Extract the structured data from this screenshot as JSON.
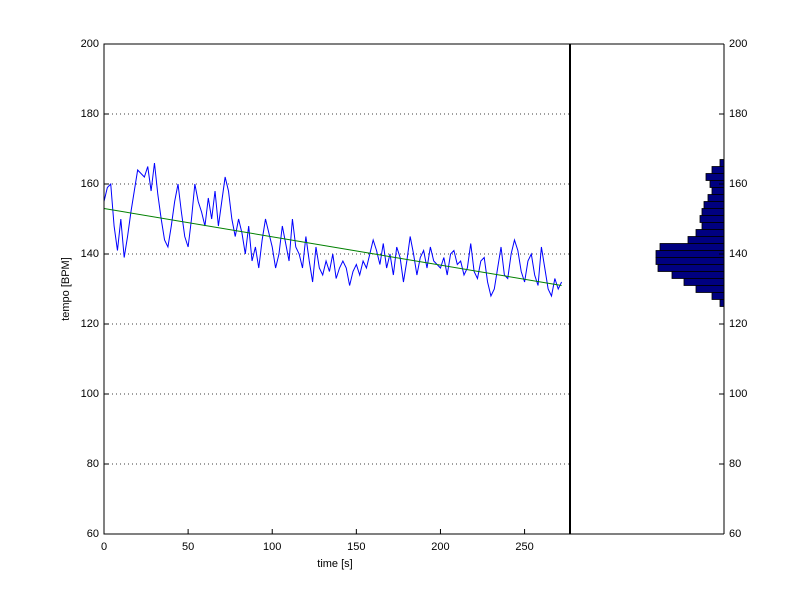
{
  "chart_data": [
    {
      "type": "line",
      "x_label": "time [s]",
      "y_label": "tempo [BPM]",
      "x": [
        0,
        2,
        4,
        6,
        8,
        10,
        12,
        14,
        16,
        18,
        20,
        22,
        24,
        26,
        28,
        30,
        32,
        34,
        36,
        38,
        40,
        42,
        44,
        46,
        48,
        50,
        52,
        54,
        56,
        58,
        60,
        62,
        64,
        66,
        68,
        70,
        72,
        74,
        76,
        78,
        80,
        82,
        84,
        86,
        88,
        90,
        92,
        94,
        96,
        98,
        100,
        102,
        104,
        106,
        108,
        110,
        112,
        114,
        116,
        118,
        120,
        122,
        124,
        126,
        128,
        130,
        132,
        134,
        136,
        138,
        140,
        142,
        144,
        146,
        148,
        150,
        152,
        154,
        156,
        158,
        160,
        162,
        164,
        166,
        168,
        170,
        172,
        174,
        176,
        178,
        180,
        182,
        184,
        186,
        188,
        190,
        192,
        194,
        196,
        198,
        200,
        202,
        204,
        206,
        208,
        210,
        212,
        214,
        216,
        218,
        220,
        222,
        224,
        226,
        228,
        230,
        232,
        234,
        236,
        238,
        240,
        242,
        244,
        246,
        248,
        250,
        252,
        254,
        256,
        258,
        260,
        262,
        264,
        266,
        268,
        270,
        272
      ],
      "series": [
        {
          "color": "#0000ff",
          "values": [
            155,
            159,
            160,
            148,
            141,
            150,
            139,
            145,
            152,
            158,
            164,
            163,
            162,
            165,
            158,
            166,
            157,
            150,
            144,
            142,
            148,
            155,
            160,
            152,
            145,
            142,
            150,
            160,
            155,
            152,
            148,
            156,
            150,
            158,
            148,
            155,
            162,
            158,
            150,
            145,
            150,
            146,
            140,
            148,
            138,
            142,
            136,
            144,
            150,
            146,
            142,
            136,
            140,
            148,
            143,
            138,
            150,
            142,
            140,
            136,
            145,
            138,
            132,
            142,
            136,
            134,
            138,
            135,
            140,
            133,
            136,
            138,
            136,
            131,
            135,
            137,
            134,
            138,
            136,
            140,
            144,
            141,
            137,
            143,
            136,
            140,
            134,
            142,
            139,
            132,
            138,
            145,
            140,
            134,
            139,
            141,
            136,
            142,
            138,
            137,
            136,
            139,
            134,
            140,
            141,
            137,
            138,
            134,
            136,
            143,
            135,
            133,
            138,
            139,
            132,
            128,
            130,
            136,
            142,
            134,
            133,
            140,
            144,
            141,
            135,
            132,
            138,
            140,
            134,
            131,
            142,
            136,
            130,
            128,
            133,
            130,
            132
          ]
        },
        {
          "color": "#008000",
          "x": [
            0,
            272
          ],
          "values": [
            153,
            131
          ]
        }
      ],
      "xlim": [
        0,
        277
      ],
      "xticks": [
        0,
        50,
        100,
        150,
        200,
        250
      ],
      "ylim": [
        60,
        200
      ],
      "yticks": [
        60,
        80,
        100,
        120,
        140,
        160,
        180,
        200
      ],
      "grid": true
    },
    {
      "type": "histogram",
      "orientation": "horizontal",
      "x_reversed": true,
      "color": "#000080",
      "bins": [
        125,
        127,
        129,
        131,
        133,
        135,
        137,
        139,
        141,
        143,
        145,
        147,
        149,
        151,
        153,
        155,
        157,
        159,
        161,
        163,
        165,
        167
      ],
      "counts": [
        2,
        6,
        14,
        20,
        26,
        33,
        34,
        34,
        32,
        18,
        14,
        11,
        12,
        11,
        10,
        8,
        6,
        7,
        9,
        6,
        2
      ],
      "xlim": [
        0,
        77
      ],
      "ylim": [
        60,
        200
      ],
      "yticks": [
        60,
        80,
        100,
        120,
        140,
        160,
        180,
        200
      ],
      "grid": false
    }
  ]
}
